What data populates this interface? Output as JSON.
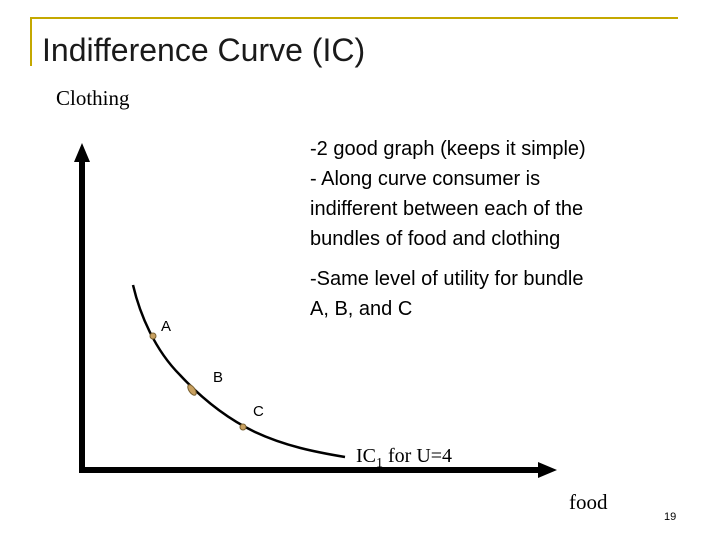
{
  "header": {
    "title": "Indifference Curve (IC)"
  },
  "axes": {
    "y_label": "Clothing",
    "x_label": "food"
  },
  "notes": [
    {
      "lines": [
        "-2 good graph (keeps it simple)",
        "- Along curve consumer is",
        "indifferent between each of the",
        "bundles of food and clothing"
      ]
    },
    {
      "lines": [
        "-Same level of utility for bundle",
        "A, B, and C"
      ]
    }
  ],
  "points": [
    {
      "label": "A"
    },
    {
      "label": "B"
    },
    {
      "label": "C"
    }
  ],
  "curve_label": {
    "name": "IC",
    "subscript": "1",
    "suffix": " for U=4"
  },
  "slide_number": "19"
}
